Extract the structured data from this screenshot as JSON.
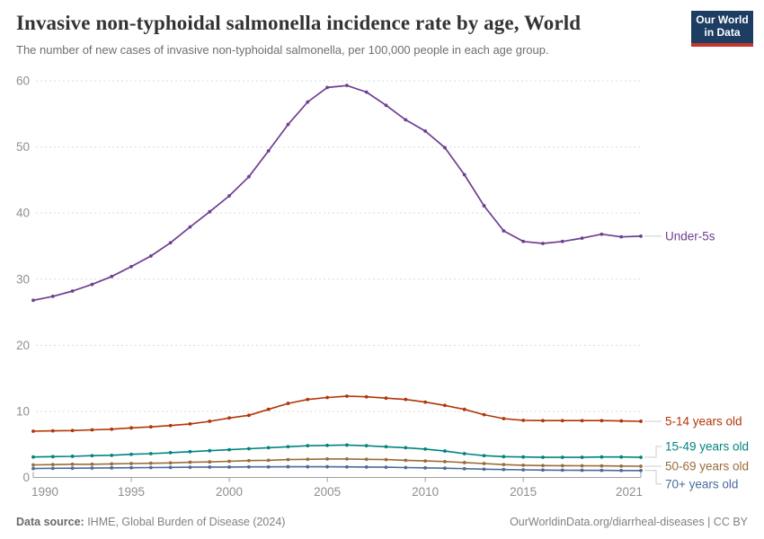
{
  "header": {
    "title": "Invasive non-typhoidal salmonella incidence rate by age, World",
    "subtitle": "The number of new cases of invasive non-typhoidal salmonella, per 100,000 people in each age group.",
    "logo": {
      "line1": "Our World",
      "line2": "in Data",
      "bg_color": "#1d3d63",
      "stripe_color": "#c7362c"
    }
  },
  "chart_data": {
    "type": "line",
    "title": "Invasive non-typhoidal salmonella incidence rate by age, World",
    "xlabel": "",
    "ylabel": "",
    "xlim": [
      1990,
      2021
    ],
    "ylim": [
      0,
      60
    ],
    "x_ticks": [
      1990,
      1995,
      2000,
      2005,
      2010,
      2015,
      2021
    ],
    "y_ticks": [
      0,
      10,
      20,
      30,
      40,
      50,
      60
    ],
    "grid": "horizontal-dashed",
    "legend_position": "right-end-labels",
    "x": [
      1990,
      1991,
      1992,
      1993,
      1994,
      1995,
      1996,
      1997,
      1998,
      1999,
      2000,
      2001,
      2002,
      2003,
      2004,
      2005,
      2006,
      2007,
      2008,
      2009,
      2010,
      2011,
      2012,
      2013,
      2014,
      2015,
      2016,
      2017,
      2018,
      2019,
      2020,
      2021
    ],
    "series": [
      {
        "name": "Under-5s",
        "color": "#6D3E91",
        "label_offset": 0,
        "line_width": 1.7,
        "values": [
          26.8,
          27.4,
          28.2,
          29.2,
          30.4,
          31.9,
          33.5,
          35.5,
          37.9,
          40.2,
          42.6,
          45.5,
          49.4,
          53.4,
          56.8,
          59.0,
          59.3,
          58.3,
          56.3,
          54.1,
          52.4,
          49.9,
          45.8,
          41.1,
          37.3,
          35.7,
          35.4,
          35.7,
          36.2,
          36.8,
          36.4,
          36.5
        ]
      },
      {
        "name": "5-14 years old",
        "color": "#B13507",
        "label_offset": 0,
        "line_width": 1.6,
        "values": [
          7.0,
          7.05,
          7.1,
          7.2,
          7.3,
          7.5,
          7.65,
          7.85,
          8.1,
          8.5,
          9.0,
          9.4,
          10.3,
          11.2,
          11.8,
          12.1,
          12.3,
          12.2,
          12.0,
          11.8,
          11.4,
          10.9,
          10.3,
          9.5,
          8.9,
          8.65,
          8.6,
          8.6,
          8.6,
          8.6,
          8.55,
          8.5
        ]
      },
      {
        "name": "15-49 years old",
        "color": "#00847E",
        "label_offset": -12,
        "line_width": 1.6,
        "values": [
          3.1,
          3.15,
          3.2,
          3.3,
          3.35,
          3.5,
          3.6,
          3.75,
          3.9,
          4.05,
          4.2,
          4.35,
          4.5,
          4.65,
          4.8,
          4.85,
          4.9,
          4.8,
          4.65,
          4.5,
          4.3,
          4.0,
          3.6,
          3.3,
          3.15,
          3.1,
          3.05,
          3.05,
          3.05,
          3.1,
          3.1,
          3.05
        ]
      },
      {
        "name": "50-69 years old",
        "color": "#996D39",
        "label_offset": 0,
        "line_width": 1.6,
        "values": [
          1.9,
          1.95,
          2.0,
          2.0,
          2.05,
          2.1,
          2.15,
          2.2,
          2.3,
          2.35,
          2.45,
          2.55,
          2.6,
          2.7,
          2.75,
          2.8,
          2.8,
          2.75,
          2.7,
          2.6,
          2.5,
          2.4,
          2.25,
          2.1,
          1.95,
          1.85,
          1.8,
          1.78,
          1.76,
          1.75,
          1.72,
          1.7
        ]
      },
      {
        "name": "70+ years old",
        "color": "#4C6A9C",
        "label_offset": 15,
        "line_width": 1.6,
        "values": [
          1.35,
          1.38,
          1.4,
          1.42,
          1.45,
          1.47,
          1.5,
          1.52,
          1.55,
          1.57,
          1.58,
          1.6,
          1.6,
          1.62,
          1.62,
          1.62,
          1.6,
          1.58,
          1.55,
          1.5,
          1.45,
          1.4,
          1.33,
          1.25,
          1.2,
          1.15,
          1.12,
          1.1,
          1.08,
          1.07,
          1.05,
          1.05
        ]
      }
    ],
    "axis_color": "#9e9e9e",
    "grid_color": "#dcdcdc",
    "tick_label_color": "#8f8f8f"
  },
  "footer": {
    "source_label": "Data source:",
    "source_text": " IHME, Global Burden of Disease (2024)",
    "right_text": "OurWorldinData.org/diarrheal-diseases | CC BY"
  }
}
